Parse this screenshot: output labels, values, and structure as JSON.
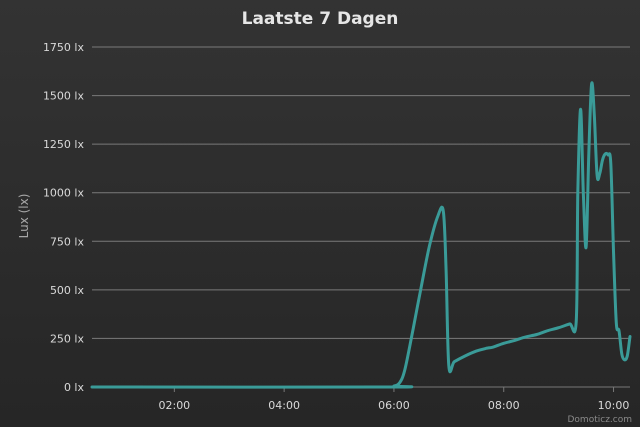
{
  "chart_data": {
    "type": "line",
    "title": "Laatste 7 Dagen",
    "ylabel": "Lux (lx)",
    "xlabel": "",
    "ylim": [
      0,
      1750
    ],
    "y_ticks": [
      0,
      250,
      500,
      750,
      1000,
      1250,
      1500,
      1750
    ],
    "y_tick_labels": [
      "0 lx",
      "250 lx",
      "500 lx",
      "750 lx",
      "1000 lx",
      "1250 lx",
      "1500 lx",
      "1750 lx"
    ],
    "x_range_hours": [
      0.5,
      10.3
    ],
    "x_ticks": [
      2,
      4,
      6,
      8,
      10
    ],
    "x_tick_labels": [
      "02:00",
      "04:00",
      "06:00",
      "08:00",
      "10:00"
    ],
    "grid": "horizontal",
    "legend": "none",
    "series": [
      {
        "color": "#3a9b98",
        "x": [
          0.5,
          5.9,
          6.0,
          6.1,
          6.2,
          6.35,
          6.5,
          6.65,
          6.8,
          6.9,
          6.95,
          7.0,
          7.1,
          7.3,
          7.5,
          7.7,
          7.8,
          8.0,
          8.2,
          8.4,
          8.6,
          8.8,
          9.0,
          9.2,
          9.32,
          9.35,
          9.4,
          9.45,
          9.5,
          9.55,
          9.6,
          9.65,
          9.7,
          9.75,
          9.8,
          9.85,
          9.9,
          9.95,
          10.0,
          10.05,
          10.1,
          10.15,
          10.2,
          10.25,
          10.3
        ],
        "y": [
          0,
          0,
          5,
          20,
          90,
          300,
          520,
          730,
          880,
          905,
          600,
          110,
          130,
          160,
          185,
          200,
          205,
          225,
          240,
          258,
          270,
          290,
          305,
          325,
          335,
          1000,
          1430,
          1000,
          720,
          1200,
          1560,
          1400,
          1090,
          1100,
          1170,
          1200,
          1195,
          1150,
          700,
          330,
          290,
          170,
          140,
          160,
          260
        ]
      }
    ]
  },
  "footer": {
    "credit": "Domoticz.com"
  }
}
